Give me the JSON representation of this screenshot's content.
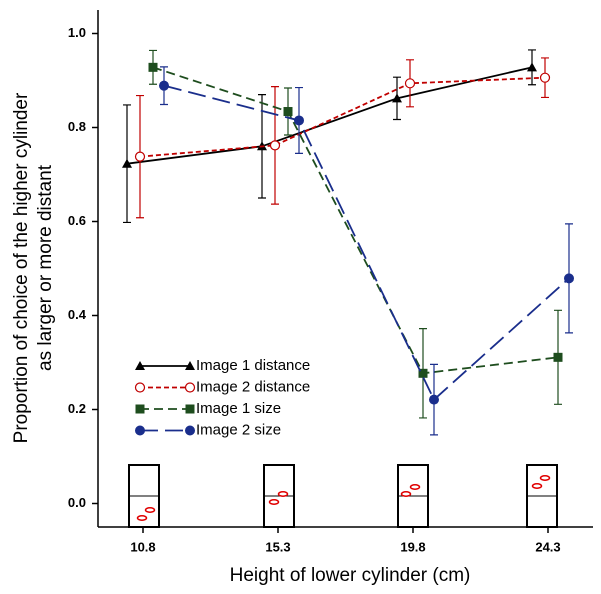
{
  "chart_data": {
    "type": "line",
    "xlabel": "Height of lower cylinder (cm)",
    "ylabel": [
      "Proportion of choice of the higher cylinder",
      "as larger or more distant"
    ],
    "categories": [
      "10.8",
      "15.3",
      "19.8",
      "24.3"
    ],
    "ylim": [
      -0.05,
      1.05
    ],
    "yticks": [
      {
        "value": 0,
        "label": "0.0"
      },
      0.2,
      0.4,
      0.6,
      0.8,
      {
        "value": 1,
        "label": "1.0"
      }
    ],
    "series": [
      {
        "name": "Image 1 distance",
        "color": "#000000",
        "marker": "triangle",
        "dash": "solid",
        "values": [
          0.723,
          0.76,
          0.862,
          0.928
        ],
        "errors": [
          0.125,
          0.11,
          0.045,
          0.037
        ]
      },
      {
        "name": "Image 2 distance",
        "color": "#c00000",
        "marker": "open-circle",
        "dash": "dotted",
        "values": [
          0.738,
          0.762,
          0.894,
          0.906
        ],
        "errors": [
          0.13,
          0.125,
          0.05,
          0.042
        ]
      },
      {
        "name": "Image 1 size",
        "color": "#1e4d1e",
        "marker": "square",
        "dash": "dashed",
        "values": [
          0.928,
          0.834,
          0.277,
          0.311
        ],
        "errors": [
          0.036,
          0.05,
          0.095,
          0.1
        ]
      },
      {
        "name": "Image 2 size",
        "color": "#1a2e8c",
        "marker": "circle",
        "dash": "long-dash",
        "values": [
          0.889,
          0.815,
          0.221,
          0.479
        ],
        "errors": [
          0.04,
          0.07,
          0.075,
          0.116
        ]
      }
    ]
  }
}
